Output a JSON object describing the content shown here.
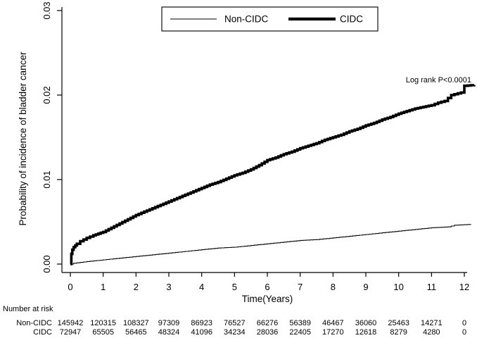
{
  "colors": {
    "line": "#000000",
    "background": "#ffffff",
    "legend_border": "#333333"
  },
  "chart_data": {
    "type": "line",
    "subtype": "kaplan-meier-cumulative-incidence",
    "title": "",
    "xlabel": "Time(Years)",
    "ylabel": "Probability of incidence of bladder cancer",
    "xlim": [
      0,
      12
    ],
    "ylim": [
      0,
      0.03
    ],
    "grid": false,
    "x_ticks": [
      "0",
      "1",
      "2",
      "3",
      "4",
      "5",
      "6",
      "7",
      "8",
      "9",
      "10",
      "11",
      "12"
    ],
    "x_tick_values": [
      0,
      1,
      2,
      3,
      4,
      5,
      6,
      7,
      8,
      9,
      10,
      11,
      12
    ],
    "y_ticks": [
      "0.00",
      "0.01",
      "0.02",
      "0.03"
    ],
    "y_tick_values": [
      0,
      0.01,
      0.02,
      0.03
    ],
    "legend": {
      "position": "top-center",
      "entries": [
        {
          "label": "Non-CIDC",
          "line_weight": "thin"
        },
        {
          "label": "CIDC",
          "line_weight": "thick"
        }
      ]
    },
    "annotation": {
      "text": "Log rank P<0.0001",
      "anchor_x": 12.2,
      "anchor_y": 0.0222
    },
    "series": [
      {
        "name": "Non-CIDC",
        "style": "thin",
        "x": [
          0,
          0.1,
          0.5,
          1,
          1.5,
          2,
          2.5,
          3,
          3.5,
          4,
          4.5,
          5,
          5.5,
          6,
          6.5,
          7,
          7.5,
          8,
          8.5,
          9,
          9.5,
          10,
          10.5,
          11,
          11.5,
          11.7,
          12.2
        ],
        "y": [
          0,
          0.0001,
          0.0003,
          0.0005,
          0.0007,
          0.0009,
          0.0011,
          0.0013,
          0.0015,
          0.0017,
          0.0019,
          0.002,
          0.0022,
          0.0024,
          0.0026,
          0.0028,
          0.0029,
          0.0031,
          0.0033,
          0.0035,
          0.0037,
          0.0039,
          0.0041,
          0.0043,
          0.0044,
          0.0046,
          0.0047
        ]
      },
      {
        "name": "CIDC",
        "style": "thick",
        "x": [
          0,
          0.03,
          0.06,
          0.1,
          0.15,
          0.2,
          0.3,
          0.4,
          0.5,
          0.7,
          0.85,
          1,
          1.25,
          1.5,
          1.75,
          2,
          2.25,
          2.5,
          2.75,
          3,
          3.25,
          3.5,
          3.75,
          4,
          4.25,
          4.5,
          4.75,
          5,
          5.25,
          5.5,
          5.75,
          6,
          6.25,
          6.5,
          6.75,
          7,
          7.25,
          7.5,
          7.75,
          8,
          8.25,
          8.5,
          8.75,
          9,
          9.25,
          9.5,
          9.75,
          10,
          10.25,
          10.5,
          10.75,
          11,
          11.2,
          11.4,
          11.6,
          11.9,
          12.0,
          12.3
        ],
        "y": [
          0,
          0.0012,
          0.0017,
          0.002,
          0.0022,
          0.0024,
          0.0027,
          0.0029,
          0.0031,
          0.0034,
          0.0036,
          0.0038,
          0.0043,
          0.0048,
          0.0053,
          0.0058,
          0.0062,
          0.0066,
          0.007,
          0.0074,
          0.0078,
          0.0082,
          0.0086,
          0.009,
          0.0094,
          0.0097,
          0.0101,
          0.0105,
          0.0108,
          0.0112,
          0.0117,
          0.0123,
          0.0126,
          0.013,
          0.0133,
          0.0137,
          0.014,
          0.0143,
          0.0147,
          0.015,
          0.0153,
          0.0157,
          0.016,
          0.0164,
          0.0167,
          0.0171,
          0.0174,
          0.0178,
          0.0181,
          0.0184,
          0.0186,
          0.0188,
          0.0191,
          0.0193,
          0.02,
          0.0203,
          0.0211,
          0.0212
        ]
      }
    ],
    "number_at_risk": {
      "title": "Number at risk",
      "times": [
        0,
        1,
        2,
        3,
        4,
        5,
        6,
        7,
        8,
        9,
        10,
        11,
        12
      ],
      "rows": [
        {
          "label": "Non-CIDC",
          "values": [
            "145942",
            "120315",
            "108327",
            "97309",
            "86923",
            "76527",
            "66276",
            "56389",
            "46467",
            "36060",
            "25463",
            "14271",
            "0"
          ]
        },
        {
          "label": "CIDC",
          "values": [
            "72947",
            "65505",
            "56465",
            "48324",
            "41096",
            "34234",
            "28036",
            "22405",
            "17270",
            "12618",
            "8279",
            "4280",
            "0"
          ]
        }
      ]
    }
  }
}
